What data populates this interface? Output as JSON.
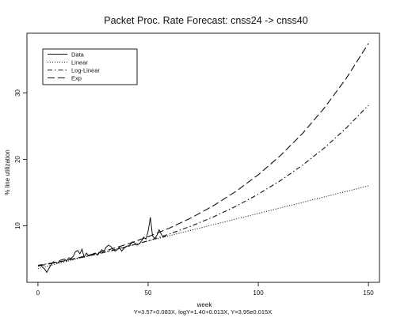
{
  "chart_data": {
    "type": "line",
    "title": "Packet Proc. Rate Forecast: cnss24 -> cnss40",
    "xlabel": "week",
    "ylabel": "% line utilization",
    "equations": "Y=3.57+0.083X,  logY=1.40+0.013X,  Y=3.95e0.015X",
    "xlim": [
      -5,
      155
    ],
    "ylim": [
      1.5,
      39
    ],
    "xticks": [
      0,
      50,
      100,
      150
    ],
    "yticks": [
      10,
      20,
      30
    ],
    "grid": false,
    "legend_position": "top-left",
    "series": [
      {
        "name": "Data",
        "style": "solid",
        "x": [
          1,
          2,
          3,
          4,
          5,
          6,
          7,
          8,
          9,
          10,
          11,
          12,
          13,
          14,
          15,
          16,
          17,
          18,
          19,
          20,
          21,
          22,
          23,
          24,
          25,
          26,
          27,
          28,
          29,
          30,
          31,
          32,
          33,
          34,
          35,
          36,
          37,
          38,
          39,
          40,
          41,
          42,
          43,
          44,
          45,
          46,
          47,
          48,
          49,
          50,
          51,
          52,
          53,
          54,
          55,
          56,
          57,
          58
        ],
        "y": [
          4.2,
          3.8,
          3.5,
          3.0,
          3.6,
          4.2,
          4.6,
          4.5,
          4.4,
          4.8,
          4.9,
          5.0,
          4.7,
          5.2,
          5.1,
          5.4,
          6.1,
          6.3,
          5.8,
          6.5,
          5.3,
          5.9,
          5.5,
          5.6,
          5.8,
          5.9,
          5.6,
          6.0,
          6.4,
          6.2,
          6.8,
          7.1,
          6.9,
          6.5,
          6.2,
          6.4,
          6.8,
          6.2,
          6.6,
          6.9,
          7.0,
          7.2,
          7.6,
          7.4,
          7.1,
          7.3,
          7.7,
          8.3,
          8.0,
          9.2,
          11.3,
          8.5,
          8.1,
          8.6,
          9.4,
          8.7,
          8.3,
          8.5
        ]
      },
      {
        "name": "Linear",
        "style": "dotted",
        "x": [
          0,
          150
        ],
        "y": [
          3.57,
          16.02
        ]
      },
      {
        "name": "Log-Linear",
        "style": "dashdot",
        "x": [
          0,
          10,
          20,
          30,
          40,
          50,
          60,
          70,
          80,
          90,
          100,
          110,
          120,
          130,
          140,
          150
        ],
        "y": [
          4.06,
          4.62,
          5.26,
          5.98,
          6.81,
          7.75,
          8.81,
          10.03,
          11.41,
          12.98,
          14.77,
          16.8,
          19.12,
          21.75,
          24.75,
          28.16
        ]
      },
      {
        "name": "Exp",
        "style": "longdash",
        "x": [
          0,
          10,
          20,
          30,
          40,
          50,
          60,
          70,
          80,
          90,
          100,
          110,
          120,
          130,
          140,
          150
        ],
        "y": [
          3.95,
          4.59,
          5.33,
          6.19,
          7.2,
          8.36,
          9.71,
          11.28,
          13.11,
          15.23,
          17.7,
          20.56,
          23.89,
          27.76,
          32.25,
          37.47
        ]
      }
    ]
  }
}
